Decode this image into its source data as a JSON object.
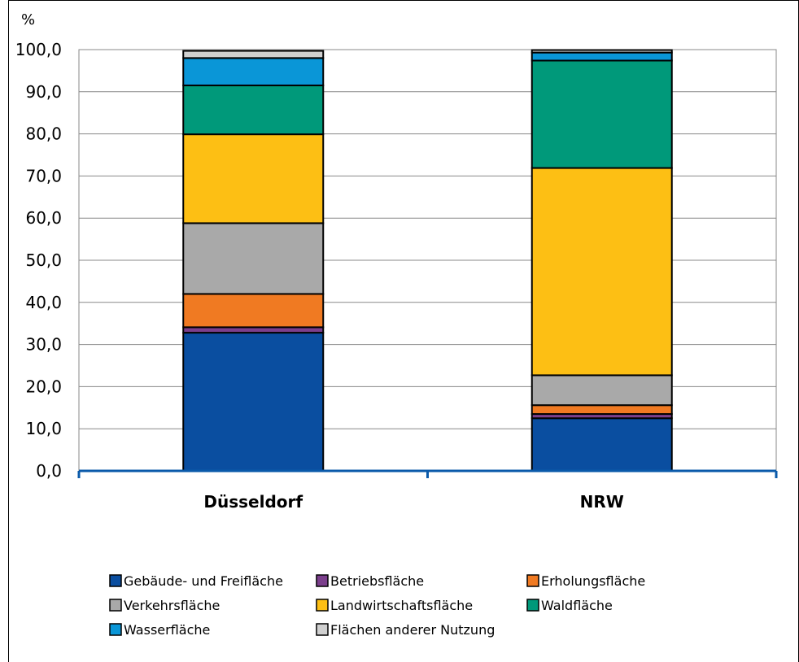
{
  "chart_data": {
    "type": "bar",
    "stacked": true,
    "unit_label": "%",
    "title": "",
    "xlabel": "",
    "ylabel": "",
    "ylim": [
      0,
      100
    ],
    "ytick_step": 10,
    "ytick_labels": [
      "0,0",
      "10,0",
      "20,0",
      "30,0",
      "40,0",
      "50,0",
      "60,0",
      "70,0",
      "80,0",
      "90,0",
      "100,0"
    ],
    "grid": true,
    "legend_position": "bottom",
    "categories": [
      "Düsseldorf",
      "NRW"
    ],
    "series": [
      {
        "name": "Gebäude- und Freifläche",
        "color": "#0a4ea0",
        "values": [
          32.8,
          12.5
        ]
      },
      {
        "name": "Betriebsfläche",
        "color": "#7b3f8c",
        "values": [
          1.3,
          1.0
        ]
      },
      {
        "name": "Erholungsfläche",
        "color": "#f07a22",
        "values": [
          7.9,
          2.1
        ]
      },
      {
        "name": "Verkehrsfläche",
        "color": "#a9a9a9",
        "values": [
          16.8,
          7.1
        ]
      },
      {
        "name": "Landwirtschaftsfläche",
        "color": "#fdbf14",
        "values": [
          21.1,
          49.2
        ]
      },
      {
        "name": "Waldfläche",
        "color": "#00997a",
        "values": [
          11.6,
          25.5
        ]
      },
      {
        "name": "Wasserfläche",
        "color": "#0a96d7",
        "values": [
          6.5,
          1.9
        ]
      },
      {
        "name": "Flächen anderer Nutzung",
        "color": "#d0d0d0",
        "values": [
          1.7,
          0.6
        ]
      }
    ]
  }
}
